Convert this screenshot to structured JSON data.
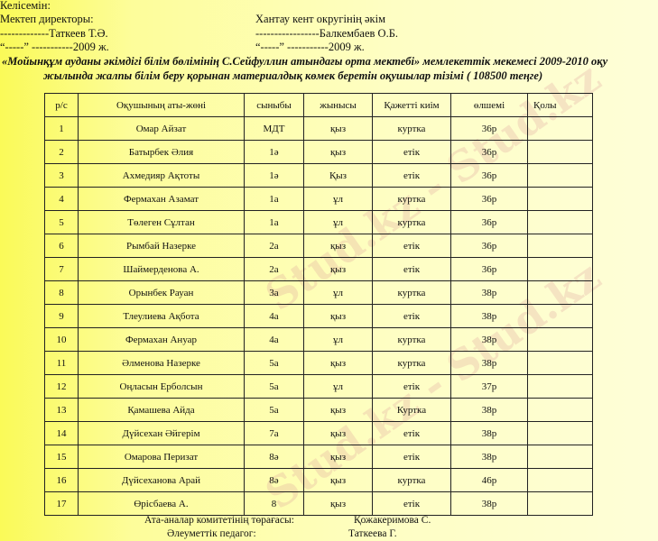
{
  "header": {
    "agreed": "Келісемін:",
    "left_role": "Мектеп директоры:",
    "left_name": "-------------Таткеев Т.Ә.",
    "left_date": "“-----”  -----------2009 ж.",
    "right_role": "Хантау кент округінің әкім",
    "right_name": "-----------------Балкембаев О.Б.",
    "right_date": "“-----”  -----------2009 ж."
  },
  "title_line1": "«Мойынқұм ауданы әкімдігі білім бөлімінің С.Сейфуллин атындағы орта мектебі» мемлекеттік мекемесі 2009-2010 оқу",
  "title_line2": "жылында жалпы білім беру қорынан материалдық көмек беретін оқушылар тізімі ( 108500 теңге)",
  "table": {
    "columns": [
      "р/с",
      "Оқушының аты-жөні",
      "сыныбы",
      "жынысы",
      "Қажетті киім",
      "өлшемі",
      "Қолы"
    ],
    "rows": [
      [
        "1",
        "Омар Айзат",
        "МДТ",
        "қыз",
        "куртка",
        "36р",
        ""
      ],
      [
        "2",
        "Батырбек Әлия",
        "1ә",
        "қыз",
        "етік",
        "36р",
        ""
      ],
      [
        "3",
        "Ахмедияр Ақтоты",
        "1ә",
        "Қыз",
        "етік",
        "36р",
        ""
      ],
      [
        "4",
        "Фермахан Азамат",
        "1а",
        "ұл",
        "куртка",
        "36р",
        ""
      ],
      [
        "5",
        "Төлеген Сұлтан",
        "1а",
        "ұл",
        "куртка",
        "36р",
        ""
      ],
      [
        "6",
        "Рымбай Назерке",
        "2а",
        "қыз",
        "етік",
        "36р",
        ""
      ],
      [
        "7",
        "Шаймерденова А.",
        "2а",
        "қыз",
        "етік",
        "36р",
        ""
      ],
      [
        "8",
        "Орынбек Рауан",
        "3а",
        "ұл",
        "куртка",
        "38р",
        ""
      ],
      [
        "9",
        "Тлеулиева Ақбота",
        "4а",
        "қыз",
        "етік",
        "38р",
        ""
      ],
      [
        "10",
        "Фермахан Ануар",
        "4а",
        "ұл",
        "куртка",
        "38р",
        ""
      ],
      [
        "11",
        "Әлменова Назерке",
        "5а",
        "қыз",
        "куртка",
        "38р",
        ""
      ],
      [
        "12",
        "Оңласын Ерболсын",
        "5а",
        "ұл",
        "етік",
        "37р",
        ""
      ],
      [
        "13",
        "Қамашева Айда",
        "5а",
        "қыз",
        "Куртка",
        "38р",
        ""
      ],
      [
        "14",
        "Дүйсехан Әйгерім",
        "7а",
        "қыз",
        "етік",
        "38р",
        ""
      ],
      [
        "15",
        "Омарова Перизат",
        "8ә",
        "қыз",
        "етік",
        "38р",
        ""
      ],
      [
        "16",
        "Дүйсеханова Арай",
        "8ә",
        "қыз",
        "куртка",
        "46р",
        ""
      ],
      [
        "17",
        "Өрісбаева А.",
        "8",
        "қыз",
        "етік",
        "38р",
        ""
      ]
    ]
  },
  "footer": {
    "parents_role": "Ата-аналар комитетінің төрағасы:",
    "parents_name": "Қожакеримова С.",
    "social_role": "Әлеуметтік педагог:",
    "social_name": "Таткеева Г."
  },
  "watermark": "Stud.kz - Stud.kz"
}
